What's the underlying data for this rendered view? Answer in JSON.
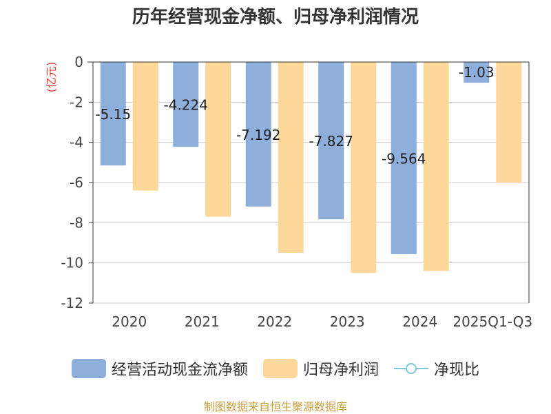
{
  "chart_data": {
    "type": "bar",
    "title": "历年经营现金净额、归母净利润情况",
    "ylabel": "(亿元)",
    "categories": [
      "2020",
      "2021",
      "2022",
      "2023",
      "2024",
      "2025Q1-Q3"
    ],
    "series": [
      {
        "name": "经营活动现金流净额",
        "color": "#8eaedc",
        "values": [
          -5.15,
          -4.224,
          -7.192,
          -7.827,
          -9.564,
          -1.03
        ]
      },
      {
        "name": "归母净利润",
        "color": "#fdd89a",
        "values": [
          -6.4,
          -7.7,
          -9.5,
          -10.5,
          -10.4,
          -6.0
        ]
      }
    ],
    "data_labels": [
      "-5.15",
      "-4.224",
      "-7.192",
      "-7.827",
      "-9.564",
      "-1.03"
    ],
    "line_series": {
      "name": "净现比",
      "color": "#7ec8d8"
    },
    "yticks": [
      "0",
      "-2",
      "-4",
      "-6",
      "-8",
      "-10",
      "-12"
    ],
    "ylim": [
      -12,
      0
    ],
    "grid": true,
    "legend_position": "bottom"
  },
  "source": {
    "text": "制图数据来自恒生聚源数据库",
    "color": "#c8a040"
  }
}
